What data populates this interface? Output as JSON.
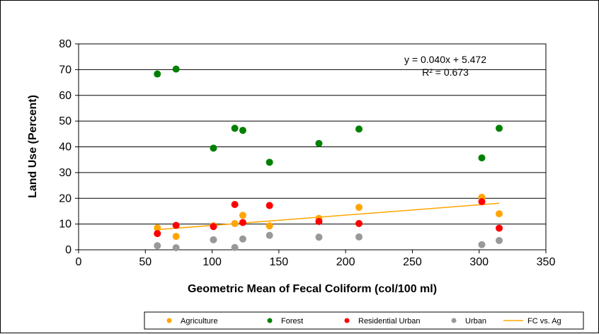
{
  "chart_data": {
    "type": "scatter",
    "title": "",
    "xlabel": "Geometric Mean of Fecal Coliform (col/100 ml)",
    "ylabel": "Land Use (Percent)",
    "xlim": [
      0,
      350
    ],
    "ylim": [
      0,
      80
    ],
    "x_ticks": [
      0,
      50,
      100,
      150,
      200,
      250,
      300,
      350
    ],
    "y_ticks": [
      0,
      10,
      20,
      30,
      40,
      50,
      60,
      70,
      80
    ],
    "grid": "horizontal",
    "legend_position": "bottom",
    "series": [
      {
        "name": "Agriculture",
        "color": "#FFA500",
        "x": [
          59,
          73,
          101,
          117,
          123,
          143,
          180,
          210,
          302,
          315
        ],
        "y": [
          8.5,
          5.2,
          9.3,
          10.2,
          13.4,
          9.3,
          12.2,
          16.5,
          20.4,
          14.0
        ]
      },
      {
        "name": "Forest",
        "color": "#008000",
        "x": [
          59,
          73,
          101,
          117,
          123,
          143,
          180,
          210,
          302,
          315
        ],
        "y": [
          68.3,
          70.2,
          39.5,
          47.2,
          46.4,
          34.0,
          41.3,
          46.9,
          35.7,
          47.2
        ]
      },
      {
        "name": "Residential Urban",
        "color": "#FF0000",
        "x": [
          59,
          73,
          101,
          117,
          123,
          143,
          180,
          210,
          302,
          315
        ],
        "y": [
          6.3,
          9.5,
          9.0,
          17.6,
          10.6,
          17.2,
          11.0,
          10.2,
          18.7,
          8.4
        ]
      },
      {
        "name": "Urban",
        "color": "#999999",
        "x": [
          59,
          73,
          101,
          117,
          123,
          143,
          180,
          210,
          302,
          315
        ],
        "y": [
          1.6,
          0.8,
          3.9,
          0.9,
          4.2,
          5.6,
          4.9,
          5.0,
          2.0,
          3.6
        ]
      }
    ],
    "trendline": {
      "name": "FC vs. Ag",
      "color": "#FFA500",
      "slope": 0.04,
      "intercept": 5.472,
      "x_range": [
        59,
        315
      ],
      "equation_text": "y = 0.040x + 5.472",
      "r2_text": "R² = 0.673"
    }
  }
}
